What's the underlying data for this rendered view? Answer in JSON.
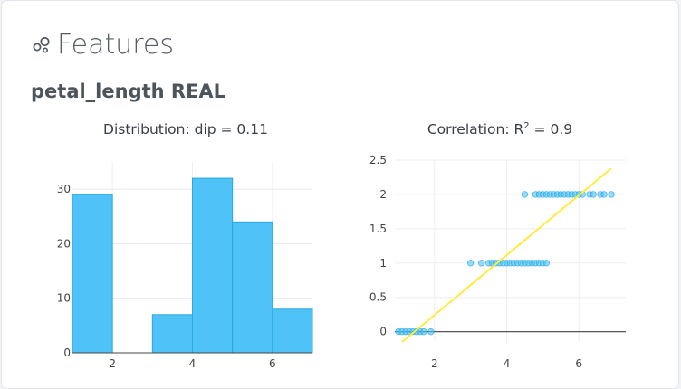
{
  "heading": {
    "icon": "features-icon",
    "title": "Features"
  },
  "feature": {
    "name": "petal_length",
    "type": "REAL",
    "label": "petal_length REAL"
  },
  "chart_data": [
    {
      "type": "bar",
      "title": "Distribution: dip = 0.11",
      "bins": [
        {
          "x0": 1.0,
          "x1": 2.0,
          "count": 29
        },
        {
          "x0": 2.0,
          "x1": 3.0,
          "count": 0
        },
        {
          "x0": 3.0,
          "x1": 4.0,
          "count": 7
        },
        {
          "x0": 4.0,
          "x1": 5.0,
          "count": 32
        },
        {
          "x0": 5.0,
          "x1": 6.0,
          "count": 24
        },
        {
          "x0": 6.0,
          "x1": 7.0,
          "count": 8
        }
      ],
      "xlim": [
        1,
        7
      ],
      "ylim": [
        0,
        35
      ],
      "xticks": [
        2,
        4,
        6
      ],
      "yticks": [
        0,
        10,
        20,
        30
      ],
      "color": "#4fc3f7",
      "grid": true
    },
    {
      "type": "scatter",
      "title_prefix": "Correlation: R",
      "title_sup": "2",
      "title_suffix": " = 0.9",
      "xlim": [
        0.9,
        7.3
      ],
      "ylim": [
        -0.15,
        2.5
      ],
      "xticks": [
        2,
        4,
        6
      ],
      "yticks": [
        0,
        0.5,
        1,
        1.5,
        2,
        2.5
      ],
      "ytick_labels": [
        "0",
        "0.5",
        "1",
        "1.5",
        "2",
        "2.5"
      ],
      "point_color": "#4fc3f7",
      "line_color": "#ffeb3b",
      "grid": true,
      "groups": [
        {
          "y": 0,
          "x": [
            1.0,
            1.1,
            1.2,
            1.3,
            1.4,
            1.5,
            1.6,
            1.7,
            1.9
          ]
        },
        {
          "y": 1,
          "x": [
            3.0,
            3.3,
            3.5,
            3.6,
            3.7,
            3.8,
            3.9,
            4.0,
            4.1,
            4.2,
            4.3,
            4.4,
            4.5,
            4.6,
            4.7,
            4.8,
            4.9,
            5.0,
            5.1
          ]
        },
        {
          "y": 2,
          "x": [
            4.5,
            4.8,
            4.9,
            5.0,
            5.1,
            5.2,
            5.3,
            5.4,
            5.5,
            5.6,
            5.7,
            5.8,
            5.9,
            6.0,
            6.1,
            6.3,
            6.4,
            6.6,
            6.7,
            6.9
          ]
        }
      ],
      "fit_line": {
        "x": [
          1.1,
          6.9
        ],
        "y": [
          -0.15,
          2.38
        ]
      }
    }
  ]
}
